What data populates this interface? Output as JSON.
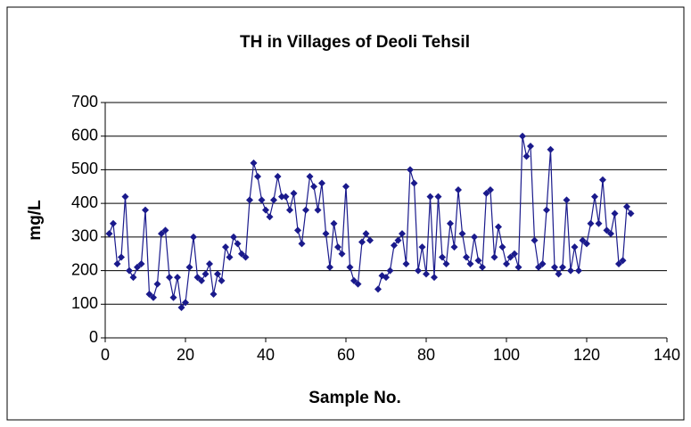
{
  "chart_data": {
    "type": "line",
    "title": "TH in Villages of Deoli Tehsil",
    "xlabel": "Sample No.",
    "ylabel": "mg/L",
    "x": [
      1,
      2,
      3,
      4,
      5,
      6,
      7,
      8,
      9,
      10,
      11,
      12,
      13,
      14,
      15,
      16,
      17,
      18,
      19,
      20,
      21,
      22,
      23,
      24,
      25,
      26,
      27,
      28,
      29,
      30,
      31,
      32,
      33,
      34,
      35,
      36,
      37,
      38,
      39,
      40,
      41,
      42,
      43,
      44,
      45,
      46,
      47,
      48,
      49,
      50,
      51,
      52,
      53,
      54,
      55,
      56,
      57,
      58,
      59,
      60,
      61,
      62,
      63,
      64,
      65,
      66,
      67,
      68,
      69,
      70,
      71,
      72,
      73,
      74,
      75,
      76,
      77,
      78,
      79,
      80,
      81,
      82,
      83,
      84,
      85,
      86,
      87,
      88,
      89,
      90,
      91,
      92,
      93,
      94,
      95,
      96,
      97,
      98,
      99,
      100,
      101,
      102,
      103,
      104,
      105,
      106,
      107,
      108,
      109,
      110,
      111,
      112,
      113,
      114,
      115,
      116,
      117,
      118,
      119,
      120,
      121,
      122,
      123,
      124,
      125,
      126,
      127,
      128,
      129,
      130,
      131
    ],
    "series": [
      {
        "name": "TH",
        "color": "#1a1a8c",
        "values": [
          310,
          340,
          220,
          240,
          420,
          200,
          180,
          210,
          220,
          380,
          130,
          120,
          160,
          310,
          320,
          180,
          120,
          180,
          90,
          105,
          210,
          300,
          180,
          170,
          190,
          220,
          130,
          190,
          170,
          270,
          240,
          300,
          280,
          250,
          240,
          410,
          520,
          480,
          410,
          380,
          360,
          410,
          480,
          420,
          420,
          380,
          430,
          320,
          280,
          380,
          480,
          450,
          380,
          460,
          310,
          210,
          340,
          270,
          250,
          450,
          210,
          170,
          160,
          285,
          310,
          290,
          null,
          145,
          185,
          180,
          200,
          275,
          290,
          310,
          220,
          500,
          460,
          200,
          270,
          190,
          420,
          180,
          420,
          240,
          220,
          340,
          270,
          440,
          310,
          240,
          220,
          300,
          230,
          210,
          430,
          440,
          240,
          330,
          270,
          220,
          240,
          250,
          210,
          600,
          540,
          570,
          290,
          210,
          220,
          380,
          560,
          210,
          190,
          210,
          410,
          200,
          270,
          200,
          290,
          280,
          340,
          420,
          340,
          470,
          320,
          310,
          370,
          220,
          230,
          390,
          370
        ]
      }
    ],
    "xlim": [
      0,
      140
    ],
    "xticks": [
      0,
      20,
      40,
      60,
      80,
      100,
      120,
      140
    ],
    "ylim": [
      0,
      700
    ],
    "yticks": [
      0,
      100,
      200,
      300,
      400,
      500,
      600,
      700
    ],
    "grid": true
  }
}
